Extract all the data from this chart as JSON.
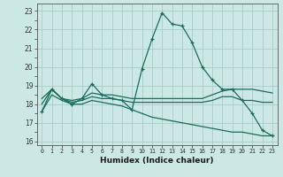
{
  "xlabel": "Humidex (Indice chaleur)",
  "bg_color": "#cce8e4",
  "grid_color": "#aaccca",
  "line_color": "#1a6b5e",
  "xlim": [
    -0.5,
    23.5
  ],
  "ylim": [
    15.8,
    23.4
  ],
  "yticks": [
    16,
    17,
    18,
    19,
    20,
    21,
    22,
    23
  ],
  "series": [
    {
      "x": [
        0,
        1,
        2,
        3,
        4,
        5,
        6,
        7,
        8,
        9,
        10,
        11,
        12,
        13,
        14,
        15,
        16,
        17,
        18,
        19,
        20,
        21,
        22,
        23
      ],
      "y": [
        17.6,
        18.8,
        18.3,
        18.0,
        18.3,
        19.1,
        18.5,
        18.3,
        18.2,
        17.7,
        19.9,
        21.5,
        22.9,
        22.3,
        22.2,
        21.3,
        20.0,
        19.3,
        18.8,
        18.8,
        18.2,
        17.5,
        16.6,
        16.3
      ],
      "marker": "+"
    },
    {
      "x": [
        0,
        1,
        2,
        3,
        4,
        5,
        6,
        7,
        8,
        9,
        10,
        11,
        12,
        13,
        14,
        15,
        16,
        17,
        18,
        19,
        20,
        21,
        22,
        23
      ],
      "y": [
        18.3,
        18.8,
        18.3,
        18.2,
        18.3,
        18.6,
        18.5,
        18.5,
        18.4,
        18.3,
        18.3,
        18.3,
        18.3,
        18.3,
        18.3,
        18.3,
        18.3,
        18.5,
        18.7,
        18.8,
        18.8,
        18.8,
        18.7,
        18.6
      ],
      "marker": null
    },
    {
      "x": [
        0,
        1,
        2,
        3,
        4,
        5,
        6,
        7,
        8,
        9,
        10,
        11,
        12,
        13,
        14,
        15,
        16,
        17,
        18,
        19,
        20,
        21,
        22,
        23
      ],
      "y": [
        18.0,
        18.8,
        18.3,
        18.1,
        18.2,
        18.4,
        18.3,
        18.3,
        18.2,
        18.1,
        18.1,
        18.1,
        18.1,
        18.1,
        18.1,
        18.1,
        18.1,
        18.2,
        18.4,
        18.4,
        18.2,
        18.2,
        18.1,
        18.1
      ],
      "marker": null
    },
    {
      "x": [
        0,
        1,
        2,
        3,
        4,
        5,
        6,
        7,
        8,
        9,
        10,
        11,
        12,
        13,
        14,
        15,
        16,
        17,
        18,
        19,
        20,
        21,
        22,
        23
      ],
      "y": [
        17.6,
        18.5,
        18.2,
        18.0,
        18.0,
        18.2,
        18.1,
        18.0,
        17.9,
        17.7,
        17.5,
        17.3,
        17.2,
        17.1,
        17.0,
        16.9,
        16.8,
        16.7,
        16.6,
        16.5,
        16.5,
        16.4,
        16.3,
        16.3
      ],
      "marker": null
    }
  ]
}
